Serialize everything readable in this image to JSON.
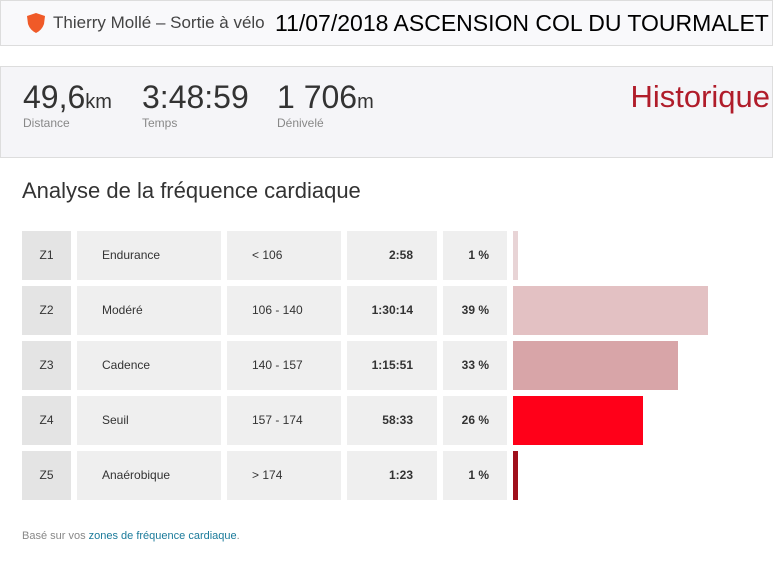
{
  "header": {
    "athlete": "Thierry Mollé – Sortie à vélo",
    "title": "11/07/2018 ASCENSION COL DU TOURMALET",
    "badge_icon": "shield-icon",
    "badge_color": "#f05a28"
  },
  "stats": [
    {
      "value": "49,6",
      "unit": "km",
      "label": "Distance"
    },
    {
      "value": "3:48:59",
      "unit": "",
      "label": "Temps"
    },
    {
      "value": "1 706",
      "unit": "m",
      "label": "Dénivelé"
    }
  ],
  "historique": "Historique",
  "section_title": "Analyse de la fréquence cardiaque",
  "zones": [
    {
      "zone": "Z1",
      "name": "Endurance",
      "range": "< 106",
      "time": "2:58",
      "pct": "1 %",
      "percent": 1,
      "color": "#e8d4d6"
    },
    {
      "zone": "Z2",
      "name": "Modéré",
      "range": "106 - 140",
      "time": "1:30:14",
      "pct": "39 %",
      "percent": 39,
      "color": "#e3c1c3"
    },
    {
      "zone": "Z3",
      "name": "Cadence",
      "range": "140 - 157",
      "time": "1:15:51",
      "pct": "33 %",
      "percent": 33,
      "color": "#d8a5a8"
    },
    {
      "zone": "Z4",
      "name": "Seuil",
      "range": "157 - 174",
      "time": "58:33",
      "pct": "26 %",
      "percent": 26,
      "color": "#ff0019"
    },
    {
      "zone": "Z5",
      "name": "Anaérobique",
      "range": "> 174",
      "time": "1:23",
      "pct": "1 %",
      "percent": 1,
      "color": "#a0101c"
    }
  ],
  "footer": {
    "prefix": "Basé sur vos ",
    "link": "zones de fréquence cardiaque",
    "suffix": "."
  }
}
